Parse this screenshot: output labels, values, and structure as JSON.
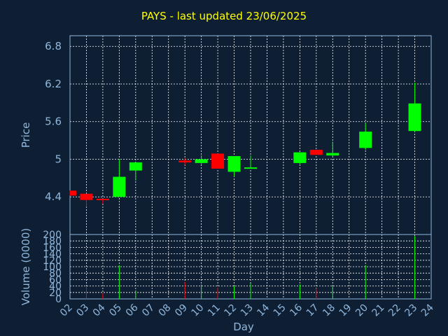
{
  "chart_data": [
    {
      "type": "candlestick",
      "title": "PAYS - last updated 23/06/2025",
      "ylabel": "Price",
      "yticks": [
        "4.4",
        "5",
        "5.6",
        "6.2",
        "6.8"
      ],
      "ylim": [
        3.8,
        6.97
      ],
      "grid": true,
      "colors": {
        "up": "#00ff00",
        "down": "#ff0000",
        "background": "#0f1f33",
        "axis": "#8fb7dd",
        "title": "#ffff00",
        "grid": "#ffffff"
      },
      "candles": [
        {
          "day": 2,
          "open": 4.5,
          "high": 4.5,
          "low": 4.42,
          "close": 4.42
        },
        {
          "day": 3,
          "open": 4.45,
          "high": 4.45,
          "low": 4.24,
          "close": 4.35
        },
        {
          "day": 4,
          "open": 4.37,
          "high": 4.37,
          "low": 4.29,
          "close": 4.35
        },
        {
          "day": 5,
          "open": 4.4,
          "high": 5.0,
          "low": 4.4,
          "close": 4.72
        },
        {
          "day": 6,
          "open": 4.82,
          "high": 4.95,
          "low": 4.66,
          "close": 4.95
        },
        {
          "day": 9,
          "open": 4.98,
          "high": 5.02,
          "low": 4.91,
          "close": 4.95
        },
        {
          "day": 10,
          "open": 4.94,
          "high": 5.06,
          "low": 4.92,
          "close": 5.0
        },
        {
          "day": 11,
          "open": 5.09,
          "high": 5.09,
          "low": 4.85,
          "close": 4.85
        },
        {
          "day": 12,
          "open": 4.8,
          "high": 5.05,
          "low": 4.73,
          "close": 5.05
        },
        {
          "day": 13,
          "open": 4.86,
          "high": 5.06,
          "low": 4.86,
          "close": 4.87
        },
        {
          "day": 16,
          "open": 4.94,
          "high": 5.11,
          "low": 4.92,
          "close": 5.11
        },
        {
          "day": 17,
          "open": 5.15,
          "high": 5.15,
          "low": 5.07,
          "close": 5.07
        },
        {
          "day": 18,
          "open": 5.06,
          "high": 5.28,
          "low": 5.04,
          "close": 5.1
        },
        {
          "day": 20,
          "open": 5.18,
          "high": 5.58,
          "low": 5.15,
          "close": 5.44
        },
        {
          "day": 23,
          "open": 5.45,
          "high": 6.22,
          "low": 5.44,
          "close": 5.89
        }
      ]
    },
    {
      "type": "bar",
      "ylabel": "Volume (0000)",
      "xlabel": "Day",
      "ylim": [
        0,
        200
      ],
      "yticks": [
        "0",
        "20",
        "40",
        "60",
        "80",
        "100",
        "120",
        "140",
        "160",
        "180",
        "200"
      ],
      "categories": [
        "02",
        "03",
        "04",
        "05",
        "06",
        "07",
        "08",
        "09",
        "10",
        "11",
        "12",
        "13",
        "14",
        "15",
        "16",
        "17",
        "18",
        "19",
        "20",
        "21",
        "22",
        "23",
        "24"
      ],
      "bars": [
        {
          "day": 3,
          "value": 40,
          "dir": "down"
        },
        {
          "day": 4,
          "value": 18,
          "dir": "down"
        },
        {
          "day": 5,
          "value": 105,
          "dir": "up"
        },
        {
          "day": 6,
          "value": 25,
          "dir": "up"
        },
        {
          "day": 9,
          "value": 52,
          "dir": "down"
        },
        {
          "day": 10,
          "value": 45,
          "dir": "up"
        },
        {
          "day": 11,
          "value": 35,
          "dir": "down"
        },
        {
          "day": 12,
          "value": 40,
          "dir": "up"
        },
        {
          "day": 13,
          "value": 48,
          "dir": "up"
        },
        {
          "day": 16,
          "value": 45,
          "dir": "up"
        },
        {
          "day": 17,
          "value": 33,
          "dir": "down"
        },
        {
          "day": 18,
          "value": 40,
          "dir": "up"
        },
        {
          "day": 20,
          "value": 105,
          "dir": "up"
        },
        {
          "day": 23,
          "value": 195,
          "dir": "up"
        }
      ]
    }
  ]
}
